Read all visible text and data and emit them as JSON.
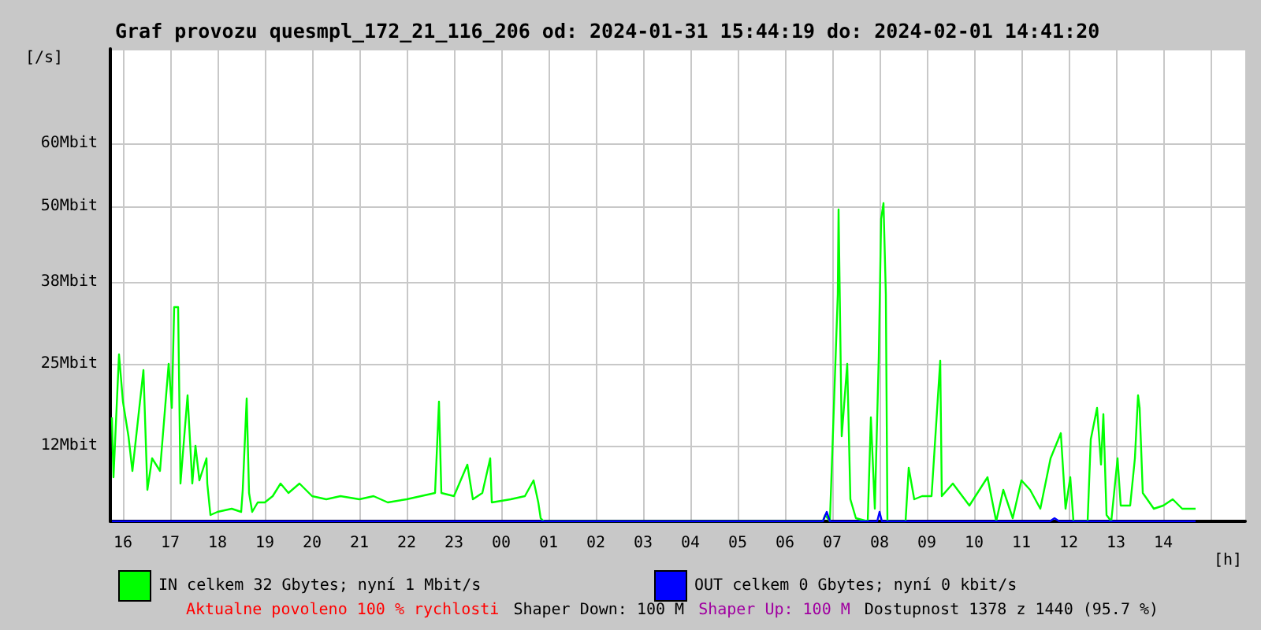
{
  "chart_data": {
    "type": "line",
    "title": "Graf provozu quesmpl_172_21_116_206 od: 2024-01-31 15:44:19 do: 2024-02-01 14:41:20",
    "xlabel": "[h]",
    "ylabel": "[/s]",
    "xlim": [
      "2024-01-31T15:44",
      "2024-02-01T15:44"
    ],
    "xticks": [
      {
        "value": "2024-01-31T16:00",
        "label": "16"
      },
      {
        "value": "2024-01-31T17:00",
        "label": "17"
      },
      {
        "value": "2024-01-31T18:00",
        "label": "18"
      },
      {
        "value": "2024-01-31T19:00",
        "label": "19"
      },
      {
        "value": "2024-01-31T20:00",
        "label": "20"
      },
      {
        "value": "2024-01-31T21:00",
        "label": "21"
      },
      {
        "value": "2024-01-31T22:00",
        "label": "22"
      },
      {
        "value": "2024-01-31T23:00",
        "label": "23"
      },
      {
        "value": "2024-02-01T00:00",
        "label": "00"
      },
      {
        "value": "2024-02-01T01:00",
        "label": "01"
      },
      {
        "value": "2024-02-01T02:00",
        "label": "02"
      },
      {
        "value": "2024-02-01T03:00",
        "label": "03"
      },
      {
        "value": "2024-02-01T04:00",
        "label": "04"
      },
      {
        "value": "2024-02-01T05:00",
        "label": "05"
      },
      {
        "value": "2024-02-01T06:00",
        "label": "06"
      },
      {
        "value": "2024-02-01T07:00",
        "label": "07"
      },
      {
        "value": "2024-02-01T08:00",
        "label": "08"
      },
      {
        "value": "2024-02-01T09:00",
        "label": "09"
      },
      {
        "value": "2024-02-01T10:00",
        "label": "10"
      },
      {
        "value": "2024-02-01T11:00",
        "label": "11"
      },
      {
        "value": "2024-02-01T12:00",
        "label": "12"
      },
      {
        "value": "2024-02-01T13:00",
        "label": "13"
      },
      {
        "value": "2024-02-01T14:00",
        "label": "14"
      },
      {
        "value": "2024-02-01T15:00",
        "label": null
      }
    ],
    "ylim": [
      0,
      75
    ],
    "yticks": [
      {
        "value": 0,
        "label": null
      },
      {
        "value": 12,
        "label": "12Mbit"
      },
      {
        "value": 25,
        "label": "25Mbit"
      },
      {
        "value": 38,
        "label": "38Mbit"
      },
      {
        "value": 50,
        "label": "50Mbit"
      },
      {
        "value": 60,
        "label": "60Mbit"
      },
      {
        "value": 75,
        "label": null
      }
    ],
    "grid": true,
    "legend": "bottom",
    "marker": "none",
    "line_style": "solid",
    "series": [
      {
        "name": "IN celkem 32 Gbytes; nyní 1 Mbit/s",
        "color": "#00ff00",
        "x": [
          "2024-01-31T15:46",
          "2024-01-31T15:48",
          "2024-01-31T15:55",
          "2024-01-31T16:00",
          "2024-01-31T16:07",
          "2024-01-31T16:12",
          "2024-01-31T16:26",
          "2024-01-31T16:31",
          "2024-01-31T16:37",
          "2024-01-31T16:47",
          "2024-01-31T16:58",
          "2024-01-31T17:02",
          "2024-01-31T17:05",
          "2024-01-31T17:10",
          "2024-01-31T17:13",
          "2024-01-31T17:22",
          "2024-01-31T17:28",
          "2024-01-31T17:32",
          "2024-01-31T17:37",
          "2024-01-31T17:46",
          "2024-01-31T17:47",
          "2024-01-31T17:51",
          "2024-01-31T18:00",
          "2024-01-31T18:18",
          "2024-01-31T18:30",
          "2024-01-31T18:32",
          "2024-01-31T18:37",
          "2024-01-31T18:40",
          "2024-01-31T18:44",
          "2024-01-31T18:51",
          "2024-01-31T19:00",
          "2024-01-31T19:10",
          "2024-01-31T19:20",
          "2024-01-31T19:30",
          "2024-01-31T19:44",
          "2024-01-31T20:00",
          "2024-01-31T20:18",
          "2024-01-31T20:36",
          "2024-01-31T21:00",
          "2024-01-31T21:18",
          "2024-01-31T21:36",
          "2024-01-31T22:00",
          "2024-01-31T22:18",
          "2024-01-31T22:36",
          "2024-01-31T22:41",
          "2024-01-31T22:44",
          "2024-01-31T23:00",
          "2024-01-31T23:17",
          "2024-01-31T23:24",
          "2024-01-31T23:36",
          "2024-01-31T23:46",
          "2024-01-31T23:48",
          "2024-02-01T00:12",
          "2024-02-01T00:30",
          "2024-02-01T00:41",
          "2024-02-01T00:47",
          "2024-02-01T00:50",
          "2024-02-01T00:54",
          "2024-02-01T03:00",
          "2024-02-01T06:48",
          "2024-02-01T06:51",
          "2024-02-01T06:57",
          "2024-02-01T07:07",
          "2024-02-01T07:08",
          "2024-02-01T07:12",
          "2024-02-01T07:19",
          "2024-02-01T07:23",
          "2024-02-01T07:30",
          "2024-02-01T07:45",
          "2024-02-01T07:49",
          "2024-02-01T07:54",
          "2024-02-01T07:59",
          "2024-02-01T08:02",
          "2024-02-01T08:05",
          "2024-02-01T08:08",
          "2024-02-01T08:10",
          "2024-02-01T08:33",
          "2024-02-01T08:37",
          "2024-02-01T08:44",
          "2024-02-01T08:54",
          "2024-02-01T09:06",
          "2024-02-01T09:17",
          "2024-02-01T09:19",
          "2024-02-01T09:33",
          "2024-02-01T09:54",
          "2024-02-01T10:17",
          "2024-02-01T10:28",
          "2024-02-01T10:37",
          "2024-02-01T10:49",
          "2024-02-01T11:00",
          "2024-02-01T11:11",
          "2024-02-01T11:24",
          "2024-02-01T11:37",
          "2024-02-01T11:50",
          "2024-02-01T11:56",
          "2024-02-01T12:02",
          "2024-02-01T12:06",
          "2024-02-01T12:24",
          "2024-02-01T12:28",
          "2024-02-01T12:36",
          "2024-02-01T12:41",
          "2024-02-01T12:44",
          "2024-02-01T12:48",
          "2024-02-01T12:54",
          "2024-02-01T13:02",
          "2024-02-01T13:06",
          "2024-02-01T13:18",
          "2024-02-01T13:24",
          "2024-02-01T13:28",
          "2024-02-01T13:30",
          "2024-02-01T13:34",
          "2024-02-01T13:48",
          "2024-02-01T14:00",
          "2024-02-01T14:12",
          "2024-02-01T14:24",
          "2024-02-01T14:41"
        ],
        "values": [
          16.5,
          7,
          26.5,
          19,
          13.5,
          8,
          24,
          5,
          10,
          8,
          25,
          18,
          34,
          34,
          6,
          20,
          6,
          12,
          6.5,
          10,
          6,
          1,
          1.5,
          2,
          1.5,
          5,
          19.5,
          4.5,
          1.5,
          3,
          3,
          4,
          6,
          4.5,
          6,
          4,
          3.5,
          4,
          3.5,
          4,
          3,
          3.5,
          4,
          4.5,
          19,
          4.5,
          4,
          9,
          3.5,
          4.5,
          10,
          3,
          3.5,
          4,
          6.5,
          3,
          0.5,
          0,
          0,
          0,
          1,
          0,
          36,
          49.5,
          13.5,
          25,
          3.5,
          0.5,
          0,
          16.5,
          2,
          26,
          48,
          50.5,
          36,
          0,
          0,
          8.5,
          3.5,
          4,
          4,
          25.5,
          4,
          6,
          2.5,
          7,
          0,
          5,
          0.5,
          6.5,
          5,
          2,
          10,
          14,
          2,
          7,
          0,
          0,
          13,
          18,
          9,
          17,
          1,
          0,
          10,
          2.5,
          2.5,
          10,
          20,
          18,
          4.5,
          2,
          2.5,
          3.5,
          2,
          2
        ]
      },
      {
        "name": "OUT celkem 0 Gbytes; nyní 0 kbit/s",
        "color": "#0000ff",
        "x": [
          "2024-01-31T15:46",
          "2024-02-01T06:48",
          "2024-02-01T06:53",
          "2024-02-01T06:57",
          "2024-02-01T07:00",
          "2024-02-01T07:57",
          "2024-02-01T08:00",
          "2024-02-01T08:03",
          "2024-02-01T11:36",
          "2024-02-01T11:42",
          "2024-02-01T11:48",
          "2024-02-01T14:41"
        ],
        "values": [
          0,
          0,
          1.5,
          0,
          0,
          0,
          1.5,
          0,
          0,
          0.5,
          0,
          0
        ]
      }
    ],
    "annotations": [
      "Aktualne povoleno 100 % rychlosti",
      "Shaper Down: 100 M",
      "Shaper Up: 100 M",
      "Dostupnost 1378 z 1440 (95.7 %)"
    ]
  }
}
